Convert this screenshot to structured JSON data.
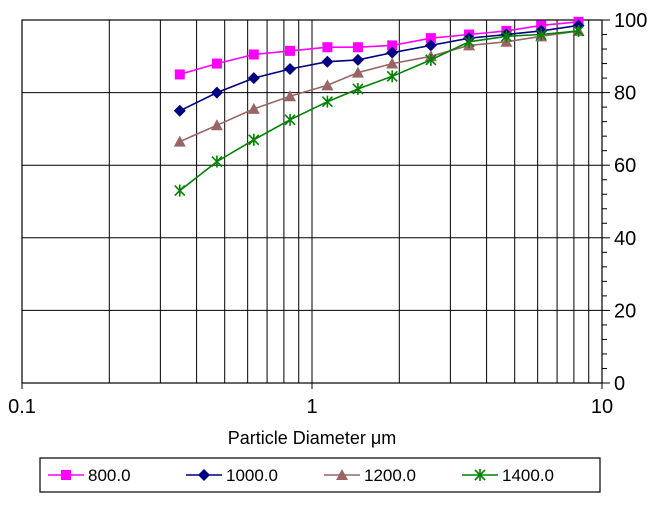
{
  "chart_data": {
    "type": "line",
    "title": "",
    "xlabel": "Particle Diameter μm",
    "ylabel": "",
    "x_scale": "log",
    "xlim": [
      0.1,
      10
    ],
    "ylim": [
      0,
      100
    ],
    "x_tick_labels": [
      "0.1",
      "1",
      "10"
    ],
    "y_tick_labels": [
      "0",
      "20",
      "40",
      "60",
      "80",
      "100"
    ],
    "y_axis_position": "right",
    "grid": true,
    "legend_position": "bottom",
    "x": [
      0.35,
      0.47,
      0.63,
      0.84,
      1.13,
      1.44,
      1.89,
      2.57,
      3.48,
      4.68,
      6.17,
      8.3
    ],
    "series": [
      {
        "name": "800.0",
        "color": "#ff00ff",
        "marker": "square",
        "values": [
          85,
          88,
          90.5,
          91.5,
          92.5,
          92.5,
          93,
          95,
          96,
          97,
          98.5,
          99.5
        ]
      },
      {
        "name": "1000.0",
        "color": "#000080",
        "marker": "diamond",
        "values": [
          75,
          80,
          84,
          86.5,
          88.5,
          89,
          91,
          93,
          95,
          96,
          97,
          98.5
        ]
      },
      {
        "name": "1200.0",
        "color": "#996666",
        "marker": "triangle",
        "values": [
          66.5,
          71,
          75.5,
          79,
          82,
          85.5,
          88,
          90,
          93,
          94,
          95.5,
          97
        ]
      },
      {
        "name": "1400.0",
        "color": "#008000",
        "marker": "star",
        "values": [
          53,
          61,
          67,
          72.5,
          77.5,
          81,
          84.5,
          89,
          94,
          95.5,
          96,
          97
        ]
      }
    ]
  }
}
